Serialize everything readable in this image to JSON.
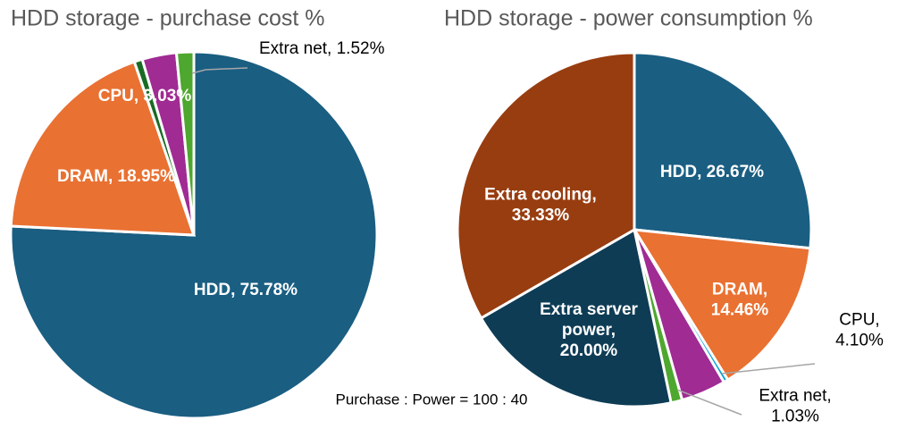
{
  "chart_data": [
    {
      "type": "pie",
      "title": "HDD storage - purchase cost %",
      "values": [
        75.78,
        18.95,
        0.72,
        3.03,
        1.52
      ],
      "value_labels": [
        "HDD, 75.78%",
        "DRAM, 18.95%",
        null,
        "CPU, 3.03%",
        "Extra net, 1.52%"
      ],
      "colors": [
        "#1a5e82",
        "#e97132",
        "#196b24",
        "#a02b93",
        "#4ea72e"
      ]
    },
    {
      "type": "pie",
      "title": "HDD storage - power consumption %",
      "values": [
        26.67,
        14.46,
        0.41,
        4.1,
        1.03,
        20.0,
        33.33
      ],
      "value_labels": [
        "HDD, 26.67%",
        "DRAM,\n14.46%",
        null,
        "CPU,\n4.10%",
        "Extra net,\n1.03%",
        "Extra server\npower,\n20.00%",
        "Extra cooling,\n33.33%"
      ],
      "colors": [
        "#1a5e82",
        "#e97132",
        "#0f9ed5",
        "#a02b93",
        "#4ea72e",
        "#0e3c55",
        "#983d10"
      ]
    }
  ],
  "caption": "Purchase : Power = 100 : 40"
}
